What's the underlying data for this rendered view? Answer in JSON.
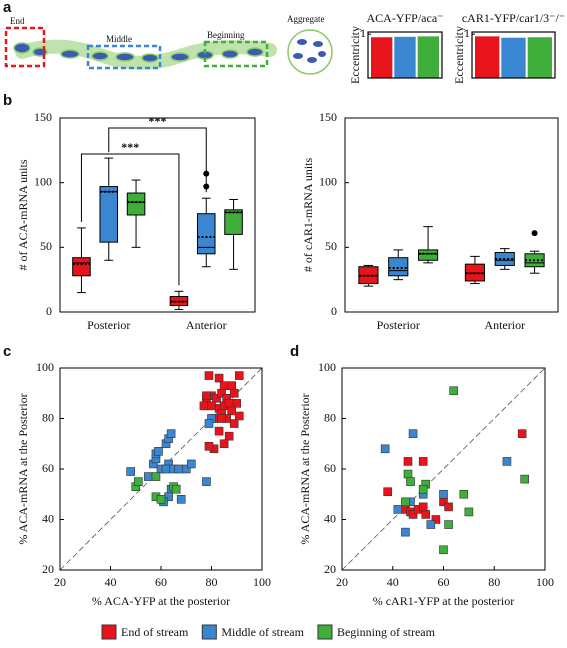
{
  "figure": {
    "panels": [
      "a",
      "b",
      "c",
      "d"
    ],
    "diagram": {
      "end": "End",
      "middle": "Middle",
      "beginning": "Beginning",
      "aggregate": "Aggregate"
    }
  },
  "chart_data": [
    {
      "type": "bar",
      "title": "ACA-YFP/aca⁻",
      "ylabel": "Eccentricity",
      "categories": [
        null,
        null,
        null
      ],
      "values": [
        0.93,
        0.94,
        0.95
      ],
      "colors": [
        "#e8141c",
        "#3b86d0",
        "#3fae3a"
      ],
      "ylim": [
        0,
        1.05
      ],
      "yticks": [
        1
      ]
    },
    {
      "type": "bar",
      "title": "cAR1-YFP/car1/3⁻/⁻",
      "ylabel": "Eccentricity",
      "categories": [
        null,
        null,
        null
      ],
      "values": [
        0.95,
        0.92,
        0.93
      ],
      "colors": [
        "#e8141c",
        "#3b86d0",
        "#3fae3a"
      ],
      "ylim": [
        0,
        1.05
      ],
      "yticks": [
        1
      ]
    },
    {
      "type": "box",
      "ylabel": "# of ACA-mRNA units",
      "categories": [
        "Posterior",
        "Anterior"
      ],
      "ylim": [
        0,
        150
      ],
      "yticks": [
        0,
        50,
        100,
        150
      ],
      "annotations": [
        "***",
        "***"
      ],
      "series": [
        {
          "color": "#e8141c",
          "values": [
            {
              "min": 15,
              "q1": 28,
              "median": 38,
              "q3": 42,
              "max": 65,
              "mean": 37,
              "outliers": []
            },
            {
              "min": 2,
              "q1": 5,
              "median": 8,
              "q3": 12,
              "max": 16,
              "mean": 8,
              "outliers": []
            }
          ]
        },
        {
          "color": "#3b86d0",
          "values": [
            {
              "min": 40,
              "q1": 54,
              "median": 93,
              "q3": 97,
              "max": 119,
              "mean": 93,
              "outliers": []
            },
            {
              "min": 35,
              "q1": 45,
              "median": 50,
              "q3": 76,
              "max": 88,
              "mean": 58,
              "outliers": [
                97,
                107
              ]
            }
          ]
        },
        {
          "color": "#3fae3a",
          "values": [
            {
              "min": 50,
              "q1": 75,
              "median": 85,
              "q3": 92,
              "max": 102,
              "mean": 85,
              "outliers": []
            },
            {
              "min": 33,
              "q1": 60,
              "median": 77,
              "q3": 79,
              "max": 87,
              "mean": 77,
              "outliers": []
            }
          ]
        }
      ]
    },
    {
      "type": "box",
      "ylabel": "# of cAR1-mRNA units",
      "categories": [
        "Posterior",
        "Anterior"
      ],
      "ylim": [
        0,
        150
      ],
      "yticks": [
        0,
        50,
        100,
        150
      ],
      "series": [
        {
          "color": "#e8141c",
          "values": [
            {
              "min": 20,
              "q1": 22,
              "median": 28,
              "q3": 35,
              "max": 36,
              "mean": 28,
              "outliers": []
            },
            {
              "min": 22,
              "q1": 24,
              "median": 30,
              "q3": 37,
              "max": 43,
              "mean": 30,
              "outliers": []
            }
          ]
        },
        {
          "color": "#3b86d0",
          "values": [
            {
              "min": 25,
              "q1": 28,
              "median": 32,
              "q3": 42,
              "max": 48,
              "mean": 34,
              "outliers": []
            },
            {
              "min": 33,
              "q1": 36,
              "median": 40,
              "q3": 46,
              "max": 49,
              "mean": 41,
              "outliers": []
            }
          ]
        },
        {
          "color": "#3fae3a",
          "values": [
            {
              "min": 38,
              "q1": 40,
              "median": 45,
              "q3": 48,
              "max": 66,
              "mean": 45,
              "outliers": []
            },
            {
              "min": 30,
              "q1": 35,
              "median": 38,
              "q3": 45,
              "max": 47,
              "mean": 40,
              "outliers": [
                61
              ]
            }
          ]
        }
      ]
    },
    {
      "type": "scatter",
      "xlabel": "% ACA-YFP  at the posterior",
      "ylabel": "% ACA-mRNA at the Posterior",
      "xlim": [
        20,
        100
      ],
      "ylim": [
        20,
        100
      ],
      "xticks": [
        20,
        40,
        60,
        80,
        100
      ],
      "yticks": [
        20,
        40,
        60,
        80,
        100
      ],
      "series": [
        {
          "name": "End of stream",
          "color": "#e8141c",
          "x": [
            79,
            83,
            91,
            85,
            88,
            80,
            78,
            82,
            84,
            86,
            89,
            90,
            77,
            80,
            83,
            85,
            87,
            88,
            81,
            84,
            86,
            89,
            91,
            83,
            87,
            85,
            81,
            79,
            84,
            78
          ],
          "y": [
            97,
            96,
            97,
            93,
            93,
            89,
            88,
            88,
            90,
            88,
            90,
            86,
            85,
            85,
            84,
            85,
            86,
            83,
            80,
            82,
            80,
            78,
            81,
            75,
            73,
            70,
            68,
            69,
            80,
            89
          ]
        },
        {
          "name": "Middle of stream",
          "color": "#3b86d0",
          "x": [
            48,
            55,
            57,
            58,
            58,
            59,
            60,
            62,
            63,
            64,
            63,
            62,
            65,
            67,
            70,
            72,
            64,
            63,
            61,
            68,
            66,
            78,
            80,
            79
          ],
          "y": [
            59,
            57,
            62,
            64,
            66,
            67,
            60,
            70,
            72,
            74,
            62,
            60,
            60,
            60,
            60,
            62,
            52,
            49,
            47,
            48,
            52,
            55,
            80,
            78
          ]
        },
        {
          "name": "Beginning of stream",
          "color": "#3fae3a",
          "x": [
            50,
            51,
            58,
            58,
            60,
            65,
            66
          ],
          "y": [
            53,
            55,
            57,
            49,
            48,
            53,
            52
          ]
        }
      ]
    },
    {
      "type": "scatter",
      "xlabel": "% cAR1-YFP  at the posterior",
      "ylabel": "% ACA-mRNA at the Posterior",
      "xlim": [
        20,
        100
      ],
      "ylim": [
        20,
        100
      ],
      "xticks": [
        20,
        40,
        60,
        80,
        100
      ],
      "yticks": [
        20,
        40,
        60,
        80,
        100
      ],
      "series": [
        {
          "color": "#e8141c",
          "x": [
            38,
            46,
            52,
            45,
            47,
            48,
            50,
            53,
            52,
            57,
            60,
            62,
            91
          ],
          "y": [
            51,
            63,
            63,
            44,
            43,
            42,
            44,
            42,
            45,
            40,
            47,
            45,
            74
          ]
        },
        {
          "color": "#3b86d0",
          "x": [
            37,
            42,
            45,
            48,
            52,
            47,
            55,
            60,
            85
          ],
          "y": [
            68,
            44,
            35,
            74,
            50,
            47,
            38,
            50,
            63
          ]
        },
        {
          "color": "#3fae3a",
          "x": [
            46,
            47,
            45,
            53,
            52,
            64,
            68,
            70,
            62,
            60,
            92
          ],
          "y": [
            58,
            55,
            47,
            54,
            52,
            91,
            50,
            43,
            38,
            28,
            56
          ]
        }
      ]
    }
  ]
}
